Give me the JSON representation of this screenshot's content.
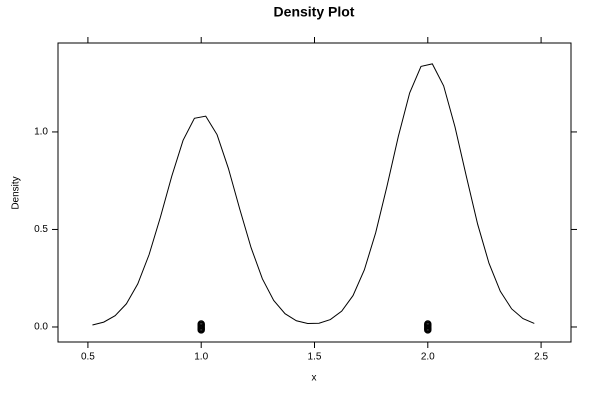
{
  "chart_data": {
    "type": "density",
    "title": "Density Plot",
    "x_label": "x",
    "y_label": "Density",
    "xlim": [
      0.368,
      2.632
    ],
    "ylim": [
      -0.077,
      1.456
    ],
    "xticks": [
      0.5,
      {
        "value": 1,
        "label": "1.0"
      },
      1.5,
      {
        "value": 2,
        "label": "2.0"
      },
      2.5
    ],
    "yticks": [
      {
        "value": 0,
        "label": "0.0"
      },
      0.5,
      {
        "value": 1,
        "label": "1.0"
      }
    ],
    "series": [
      {
        "kind": "line",
        "color": "#000000",
        "x": [
          0.52,
          0.57,
          0.62,
          0.67,
          0.72,
          0.77,
          0.82,
          0.87,
          0.92,
          0.97,
          1.02,
          1.07,
          1.12,
          1.17,
          1.22,
          1.27,
          1.32,
          1.37,
          1.42,
          1.47,
          1.52,
          1.57,
          1.62,
          1.67,
          1.72,
          1.77,
          1.82,
          1.87,
          1.92,
          1.97,
          2.02,
          2.07,
          2.12,
          2.17,
          2.22,
          2.27,
          2.32,
          2.37,
          2.42,
          2.47
        ],
        "values": [
          0.01,
          0.025,
          0.058,
          0.119,
          0.221,
          0.371,
          0.563,
          0.773,
          0.957,
          1.07,
          1.081,
          0.986,
          0.813,
          0.605,
          0.407,
          0.247,
          0.136,
          0.068,
          0.032,
          0.018,
          0.019,
          0.038,
          0.081,
          0.161,
          0.293,
          0.483,
          0.722,
          0.977,
          1.2,
          1.336,
          1.349,
          1.236,
          1.026,
          0.773,
          0.527,
          0.327,
          0.183,
          0.093,
          0.043,
          0.018
        ]
      },
      {
        "kind": "points",
        "color": "#000000",
        "x": [
          1,
          1,
          1,
          1,
          1,
          2,
          2,
          2,
          2,
          2
        ],
        "values": [
          -0.015,
          -0.008,
          0,
          0.008,
          0.015,
          -0.015,
          -0.008,
          0,
          0.008,
          0.015
        ]
      }
    ]
  }
}
